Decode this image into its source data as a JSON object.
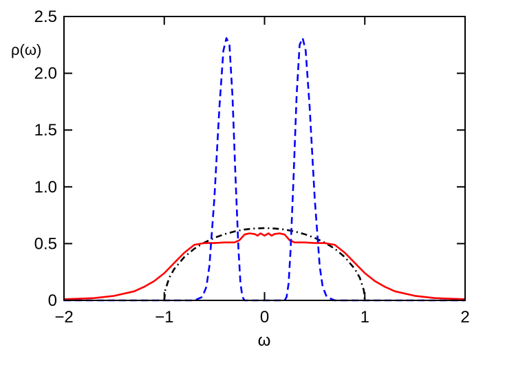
{
  "chart_data": {
    "type": "line",
    "title": "",
    "xlabel": "ω",
    "ylabel": "ρ(ω)",
    "xlim": [
      -2,
      2
    ],
    "ylim": [
      0,
      2.5
    ],
    "xticks": [
      -2,
      -1,
      0,
      1,
      2
    ],
    "xtick_labels": [
      "−2",
      "−1",
      "0",
      "1",
      "2"
    ],
    "yticks": [
      0,
      0.5,
      1.0,
      1.5,
      2.0,
      2.5
    ],
    "ytick_labels": [
      "0",
      "0.5",
      "1.0",
      "1.5",
      "2.0",
      "2.5"
    ],
    "grid": false,
    "series": [
      {
        "style": "dash-dot",
        "color": "#000000",
        "x": [
          -1,
          -0.99,
          -0.95,
          -0.9,
          -0.8,
          -0.7,
          -0.6,
          -0.5,
          -0.4,
          -0.3,
          -0.2,
          -0.1,
          0,
          0.1,
          0.2,
          0.3,
          0.4,
          0.5,
          0.6,
          0.7,
          0.8,
          0.9,
          0.95,
          0.99,
          1
        ],
        "y": [
          0,
          0.09,
          0.199,
          0.277,
          0.382,
          0.455,
          0.509,
          0.551,
          0.583,
          0.607,
          0.624,
          0.633,
          0.637,
          0.633,
          0.624,
          0.607,
          0.583,
          0.551,
          0.509,
          0.455,
          0.382,
          0.277,
          0.199,
          0.09,
          0
        ]
      },
      {
        "style": "solid",
        "color": "#ff0000",
        "x": [
          -2,
          -1.7,
          -1.5,
          -1.3,
          -1.2,
          -1.1,
          -1.0,
          -0.9,
          -0.8,
          -0.7,
          -0.6,
          -0.5,
          -0.4,
          -0.3,
          -0.25,
          -0.2,
          -0.15,
          -0.1,
          -0.07,
          -0.04,
          0,
          0.04,
          0.07,
          0.1,
          0.15,
          0.2,
          0.25,
          0.3,
          0.4,
          0.5,
          0.6,
          0.7,
          0.8,
          0.9,
          1.0,
          1.1,
          1.2,
          1.3,
          1.5,
          1.7,
          2
        ],
        "y": [
          0.01,
          0.02,
          0.04,
          0.08,
          0.12,
          0.17,
          0.24,
          0.33,
          0.42,
          0.49,
          0.505,
          0.505,
          0.51,
          0.51,
          0.53,
          0.58,
          0.59,
          0.585,
          0.57,
          0.59,
          0.57,
          0.59,
          0.57,
          0.585,
          0.59,
          0.58,
          0.53,
          0.51,
          0.51,
          0.505,
          0.505,
          0.49,
          0.42,
          0.33,
          0.24,
          0.17,
          0.12,
          0.08,
          0.04,
          0.02,
          0.01
        ]
      },
      {
        "style": "dashed",
        "color": "#0000ff",
        "x": [
          -2,
          -0.7,
          -0.62,
          -0.58,
          -0.55,
          -0.5,
          -0.45,
          -0.41,
          -0.38,
          -0.35,
          -0.32,
          -0.29,
          -0.26,
          -0.24,
          -0.22,
          -0.2,
          0,
          0.2,
          0.22,
          0.24,
          0.26,
          0.29,
          0.32,
          0.35,
          0.38,
          0.41,
          0.45,
          0.5,
          0.55,
          0.58,
          0.62,
          0.7,
          2
        ],
        "y": [
          0,
          0,
          0.03,
          0.12,
          0.3,
          0.9,
          1.7,
          2.2,
          2.31,
          2.25,
          1.8,
          1.1,
          0.45,
          0.15,
          0.03,
          0,
          0,
          0,
          0.03,
          0.15,
          0.45,
          1.1,
          1.8,
          2.25,
          2.31,
          2.2,
          1.7,
          0.9,
          0.3,
          0.12,
          0.03,
          0,
          0
        ]
      }
    ]
  }
}
